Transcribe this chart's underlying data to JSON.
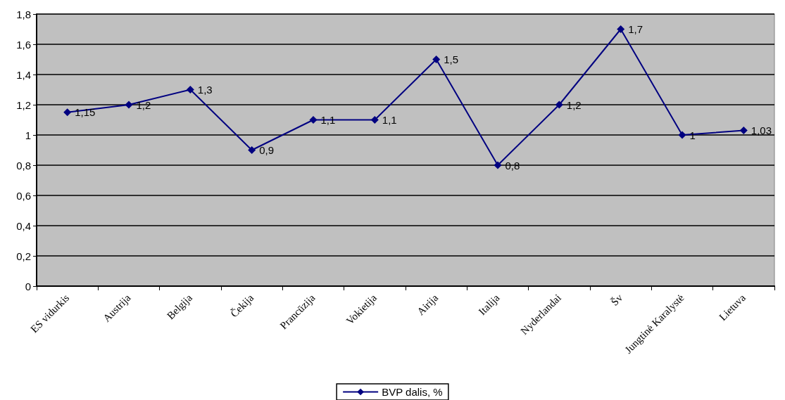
{
  "chart_data": {
    "type": "line",
    "categories": [
      "ES vidurkis",
      "Austrija",
      "Belgija",
      "Čekija",
      "Prancūzija",
      "Vokietija",
      "Airija",
      "Italija",
      "Nyderlandai",
      "Šv",
      "Jungtinė Karalystė",
      "Lietuva"
    ],
    "series": [
      {
        "name": "BVP dalis, %",
        "color": "#000080",
        "values": [
          1.15,
          1.2,
          1.3,
          0.9,
          1.1,
          1.1,
          1.5,
          0.8,
          1.2,
          1.7,
          1,
          1.03
        ],
        "value_labels": [
          "1,15",
          "1,2",
          "1,3",
          "0,9",
          "1,1",
          "1,1",
          "1,5",
          "0,8",
          "1,2",
          "1,7",
          "1",
          "1,03"
        ]
      }
    ],
    "ylim": [
      0,
      1.8
    ],
    "yticks": [
      0,
      {
        "value": 0.2,
        "label": "0,2"
      },
      {
        "value": 0.4,
        "label": "0,4"
      },
      {
        "value": 0.6,
        "label": "0,6"
      },
      {
        "value": 0.8,
        "label": "0,8"
      },
      1,
      {
        "value": 1.2,
        "label": "1,2"
      },
      {
        "value": 1.4,
        "label": "1,4"
      },
      {
        "value": 1.6,
        "label": "1,6"
      },
      {
        "value": 1.8,
        "label": "1,8"
      }
    ],
    "grid": "y",
    "legend": "bottom",
    "marker": "diamond",
    "line_style": "solid"
  }
}
